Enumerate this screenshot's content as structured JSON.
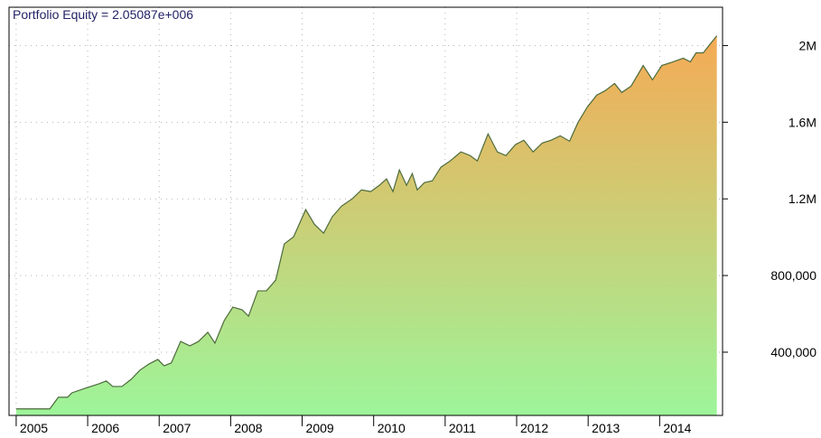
{
  "chart_data": {
    "type": "area",
    "title": "Portfolio Equity = 2.05087e+006",
    "x": [
      2005.0,
      2005.47,
      2005.59,
      2005.72,
      2005.78,
      2005.97,
      2006.16,
      2006.26,
      2006.35,
      2006.48,
      2006.61,
      2006.73,
      2006.86,
      2006.98,
      2007.07,
      2007.17,
      2007.3,
      2007.43,
      2007.55,
      2007.68,
      2007.78,
      2007.91,
      2008.03,
      2008.16,
      2008.25,
      2008.38,
      2008.5,
      2008.63,
      2008.75,
      2008.88,
      2009.05,
      2009.17,
      2009.3,
      2009.42,
      2009.55,
      2009.7,
      2009.83,
      2009.96,
      2010.08,
      2010.18,
      2010.27,
      2010.36,
      2010.46,
      2010.54,
      2010.61,
      2010.71,
      2010.82,
      2010.94,
      2011.07,
      2011.22,
      2011.35,
      2011.45,
      2011.6,
      2011.73,
      2011.85,
      2011.98,
      2012.1,
      2012.23,
      2012.36,
      2012.48,
      2012.61,
      2012.74,
      2012.86,
      2012.99,
      2013.12,
      2013.24,
      2013.37,
      2013.47,
      2013.6,
      2013.77,
      2013.9,
      2014.03,
      2014.19,
      2014.33,
      2014.43,
      2014.51,
      2014.61,
      2014.71,
      2014.8
    ],
    "values": [
      104000,
      104000,
      165000,
      165000,
      188000,
      212000,
      235000,
      250000,
      221000,
      221000,
      259000,
      306000,
      339000,
      362000,
      329000,
      344000,
      456000,
      433000,
      456000,
      504000,
      447000,
      565000,
      635000,
      621000,
      588000,
      720000,
      720000,
      776000,
      965000,
      1002000,
      1144000,
      1068000,
      1021000,
      1106000,
      1162000,
      1200000,
      1247000,
      1238000,
      1271000,
      1304000,
      1238000,
      1351000,
      1271000,
      1332000,
      1247000,
      1285000,
      1294000,
      1365000,
      1398000,
      1445000,
      1426000,
      1398000,
      1539000,
      1445000,
      1426000,
      1482000,
      1506000,
      1445000,
      1492000,
      1506000,
      1529000,
      1501000,
      1600000,
      1680000,
      1741000,
      1765000,
      1802000,
      1755000,
      1788000,
      1896000,
      1821000,
      1896000,
      1915000,
      1934000,
      1915000,
      1962000,
      1962000,
      2009000,
      2050870
    ],
    "xlim": [
      2004.9,
      2014.88
    ],
    "xticks": [
      2005,
      2006,
      2007,
      2008,
      2009,
      2010,
      2011,
      2012,
      2013,
      2014
    ],
    "ylim": [
      70000,
      2200000
    ],
    "yticks": [
      {
        "value": 400000,
        "label": "400,000"
      },
      {
        "value": 800000,
        "label": "800,000"
      },
      {
        "value": 1200000,
        "label": "1.2M"
      },
      {
        "value": 1600000,
        "label": "1.6M"
      },
      {
        "value": 2000000,
        "label": "2M"
      }
    ],
    "grid": true,
    "line_color": "#4d6b3c",
    "gradient": [
      "#f5aa55",
      "#9df59a"
    ]
  }
}
